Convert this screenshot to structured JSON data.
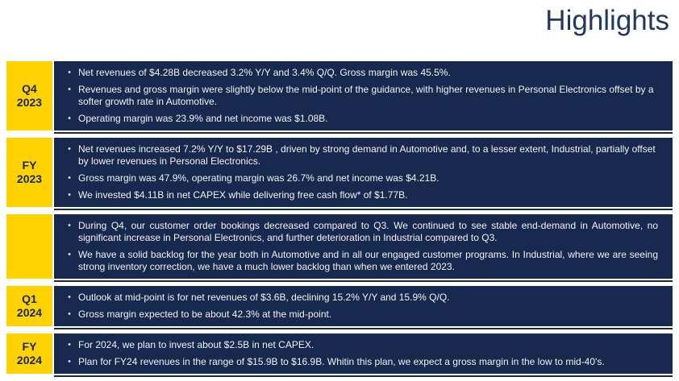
{
  "title": "Highlights",
  "bullet_char": "•",
  "colors": {
    "accent_yellow": "#FFD200",
    "navy": "#17294F",
    "title_blue": "#1F3864",
    "body_text": "#F2F2F2"
  },
  "rows": [
    {
      "label": "Q4\n2023",
      "bullets": [
        "Net revenues of $4.28B decreased 3.2% Y/Y and 3.4% Q/Q. Gross margin was 45.5%.",
        "Revenues and gross margin were slightly below the mid-point of the guidance, with higher revenues in Personal Electronics offset by a softer growth rate in Automotive.",
        "Operating margin was 23.9% and net income was $1.08B."
      ]
    },
    {
      "label": "FY\n2023",
      "bullets": [
        "Net revenues increased 7.2% Y/Y to $17.29B , driven by strong demand in Automotive and, to a lesser extent, Industrial, partially offset by lower revenues in Personal Electronics.",
        "Gross margin was 47.9%, operating margin was 26.7% and net income was $4.21B.",
        "We invested $4.11B in net CAPEX while delivering free cash flow* of $1.77B."
      ]
    },
    {
      "label": "",
      "bullets": [
        "During Q4, our customer order bookings decreased compared to Q3. We continued to see stable end-demand in Automotive, no significant increase in Personal Electronics, and further deterioration in Industrial compared to Q3.",
        "We have a solid backlog for the year both in Automotive and in all our engaged customer programs. In Industrial, where we are seeing strong inventory correction, we have a much lower backlog than when we entered 2023."
      ]
    },
    {
      "label": "Q1\n2024",
      "bullets": [
        "Outlook at mid-point is for net revenues of $3.6B, declining 15.2% Y/Y and 15.9% Q/Q.",
        "Gross margin expected to be about 42.3% at the mid-point."
      ]
    },
    {
      "label": "FY\n2024",
      "bullets": [
        "For 2024, we plan to invest about $2.5B in net CAPEX.",
        "Plan for FY24 revenues in the range of $15.9B to $16.9B. Whitin this plan, we expect a gross margin in the low to mid-40's."
      ]
    }
  ]
}
